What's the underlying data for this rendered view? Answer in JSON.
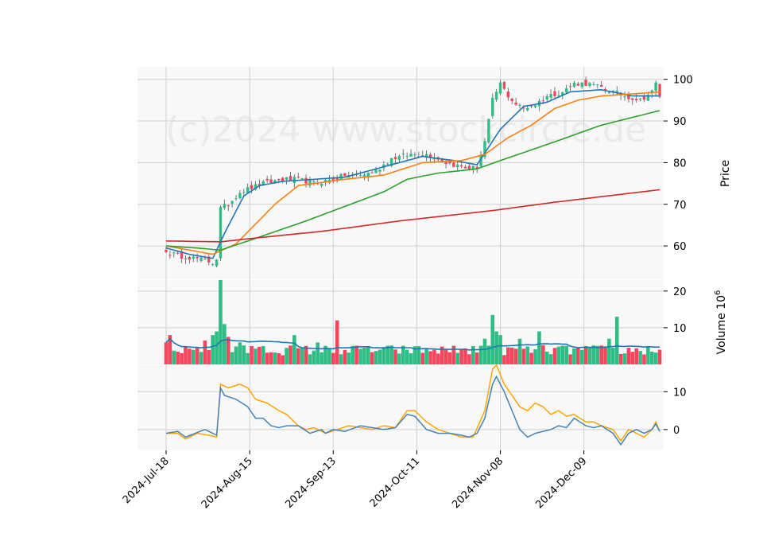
{
  "watermark": "(c)2024 www.stockcircle.de",
  "colors": {
    "up": "#2ebd85",
    "down": "#f6465d",
    "ma_blue": "#1f77b4",
    "ma_orange": "#ff7f0e",
    "ma_green": "#2ca02c",
    "ma_red": "#d62728",
    "vol_ma": "#1f77b4",
    "osc_blue": "#4682b4",
    "osc_orange": "#ffa500",
    "panel_bg": "#f8f8f8",
    "grid": "#d0d0d0"
  },
  "chart_data": {
    "type": "candlestick",
    "x_ticks": [
      "2024-Jul-18",
      "2024-Aug-15",
      "2024-Sep-13",
      "2024-Oct-11",
      "2024-Nov-08",
      "2024-Dec-09"
    ],
    "panels": {
      "price": {
        "ylabel": "Price",
        "yticks": [
          60,
          70,
          80,
          90,
          100
        ],
        "ylim": [
          52,
          103
        ],
        "close_anchors": [
          [
            0,
            58.5
          ],
          [
            4,
            57.5
          ],
          [
            8,
            57
          ],
          [
            12,
            56
          ],
          [
            13,
            57
          ],
          [
            14,
            69
          ],
          [
            16,
            70
          ],
          [
            19,
            73
          ],
          [
            25,
            75
          ],
          [
            30,
            76
          ],
          [
            34,
            76
          ],
          [
            38,
            75
          ],
          [
            43,
            76
          ],
          [
            46,
            77
          ],
          [
            50,
            77
          ],
          [
            54,
            78
          ],
          [
            58,
            81
          ],
          [
            63,
            82
          ],
          [
            67,
            82
          ],
          [
            72,
            80
          ],
          [
            76,
            79
          ],
          [
            78,
            78.5
          ],
          [
            80,
            79
          ],
          [
            82,
            85
          ],
          [
            84,
            95
          ],
          [
            86,
            99
          ],
          [
            88,
            96
          ],
          [
            90,
            94
          ],
          [
            92,
            93
          ],
          [
            95,
            94
          ],
          [
            98,
            96
          ],
          [
            102,
            97
          ],
          [
            105,
            99
          ],
          [
            108,
            99
          ],
          [
            112,
            98
          ],
          [
            115,
            97
          ],
          [
            118,
            96
          ],
          [
            122,
            95
          ],
          [
            125,
            97
          ],
          [
            126,
            99
          ],
          [
            127,
            96
          ]
        ],
        "moving_averages": [
          {
            "color_key": "ma_blue",
            "anchors": [
              [
                0,
                59.5
              ],
              [
                6,
                58
              ],
              [
                12,
                57
              ],
              [
                15,
                63
              ],
              [
                20,
                72
              ],
              [
                24,
                74.5
              ],
              [
                30,
                75.5
              ],
              [
                38,
                76
              ],
              [
                46,
                76.5
              ],
              [
                56,
                79
              ],
              [
                66,
                81.5
              ],
              [
                74,
                80.5
              ],
              [
                80,
                79.5
              ],
              [
                86,
                88
              ],
              [
                92,
                93.5
              ],
              [
                98,
                94.5
              ],
              [
                104,
                97
              ],
              [
                112,
                97.5
              ],
              [
                120,
                96
              ],
              [
                127,
                96
              ]
            ]
          },
          {
            "color_key": "ma_orange",
            "anchors": [
              [
                0,
                60
              ],
              [
                6,
                59
              ],
              [
                12,
                58
              ],
              [
                18,
                60.5
              ],
              [
                28,
                70
              ],
              [
                34,
                74.5
              ],
              [
                46,
                76
              ],
              [
                56,
                77
              ],
              [
                66,
                80
              ],
              [
                76,
                80.5
              ],
              [
                82,
                82
              ],
              [
                88,
                86
              ],
              [
                94,
                89
              ],
              [
                100,
                93
              ],
              [
                106,
                95
              ],
              [
                112,
                96
              ],
              [
                120,
                96.5
              ],
              [
                127,
                97
              ]
            ]
          },
          {
            "color_key": "ma_green",
            "anchors": [
              [
                0,
                60
              ],
              [
                8,
                59.5
              ],
              [
                14,
                59
              ],
              [
                22,
                61.5
              ],
              [
                36,
                66
              ],
              [
                46,
                69.5
              ],
              [
                56,
                73
              ],
              [
                62,
                76
              ],
              [
                70,
                77.5
              ],
              [
                80,
                78.5
              ],
              [
                86,
                80.5
              ],
              [
                100,
                85
              ],
              [
                112,
                89
              ],
              [
                127,
                92.5
              ]
            ]
          },
          {
            "color_key": "ma_red",
            "anchors": [
              [
                0,
                61.2
              ],
              [
                14,
                61
              ],
              [
                24,
                62
              ],
              [
                40,
                63.5
              ],
              [
                60,
                66
              ],
              [
                84,
                68.5
              ],
              [
                100,
                70.5
              ],
              [
                127,
                73.5
              ]
            ]
          }
        ]
      },
      "volume": {
        "ylabel": "Volume  10^6",
        "yticks": [
          10,
          20
        ],
        "ylim": [
          0,
          23
        ],
        "spikes": {
          "0": 6,
          "1": 8,
          "8": 4.5,
          "10": 6.5,
          "12": 8,
          "13": 9,
          "14": 23,
          "15": 11,
          "16": 7.5,
          "19": 6,
          "22": 5,
          "25": 5,
          "33": 8,
          "39": 6,
          "44": 12,
          "52": 5,
          "62": 4,
          "72": 4,
          "79": 5,
          "82": 7,
          "84": 13.5,
          "85": 9,
          "86": 8,
          "91": 7,
          "96": 9,
          "108": 5,
          "114": 7,
          "116": 13,
          "118": 3,
          "127": 4
        }
      },
      "oscillator": {
        "yticks": [
          0,
          10
        ],
        "ylim": [
          -5.5,
          17
        ],
        "blue_anchors": [
          [
            0,
            -1
          ],
          [
            3,
            -0.5
          ],
          [
            5,
            -2
          ],
          [
            10,
            0
          ],
          [
            13,
            -1.5
          ],
          [
            14,
            11
          ],
          [
            15,
            9
          ],
          [
            18,
            8
          ],
          [
            21,
            6
          ],
          [
            23,
            3
          ],
          [
            25,
            3
          ],
          [
            27,
            1
          ],
          [
            29,
            0.5
          ],
          [
            31,
            1
          ],
          [
            34,
            1
          ],
          [
            37,
            -1
          ],
          [
            40,
            0
          ],
          [
            41,
            -1
          ],
          [
            43,
            0
          ],
          [
            46,
            -0.5
          ],
          [
            50,
            1
          ],
          [
            53,
            0.5
          ],
          [
            56,
            0
          ],
          [
            59,
            0.5
          ],
          [
            62,
            4
          ],
          [
            64,
            3.5
          ],
          [
            67,
            0
          ],
          [
            70,
            -1
          ],
          [
            73,
            -1
          ],
          [
            76,
            -1.5
          ],
          [
            78,
            -2
          ],
          [
            80,
            -1
          ],
          [
            82,
            3
          ],
          [
            84,
            12
          ],
          [
            85,
            14
          ],
          [
            87,
            10
          ],
          [
            89,
            5
          ],
          [
            91,
            0
          ],
          [
            93,
            -2
          ],
          [
            95,
            -1
          ],
          [
            97,
            -0.5
          ],
          [
            99,
            0
          ],
          [
            101,
            1
          ],
          [
            103,
            0.5
          ],
          [
            105,
            3
          ],
          [
            108,
            1
          ],
          [
            110,
            0.5
          ],
          [
            112,
            1
          ],
          [
            115,
            -1
          ],
          [
            117,
            -4
          ],
          [
            119,
            -1
          ],
          [
            121,
            0
          ],
          [
            123,
            -1
          ],
          [
            125,
            0
          ],
          [
            126,
            1.5
          ],
          [
            127,
            -0.5
          ]
        ],
        "orange_anchors": [
          [
            0,
            -1
          ],
          [
            3,
            -1
          ],
          [
            5,
            -2.5
          ],
          [
            8,
            -1
          ],
          [
            11,
            -1.5
          ],
          [
            13,
            -2
          ],
          [
            14,
            12
          ],
          [
            16,
            11
          ],
          [
            19,
            12
          ],
          [
            21,
            11
          ],
          [
            23,
            8
          ],
          [
            26,
            7
          ],
          [
            29,
            5
          ],
          [
            31,
            4
          ],
          [
            34,
            1
          ],
          [
            36,
            0
          ],
          [
            38,
            0.5
          ],
          [
            41,
            -1
          ],
          [
            44,
            0
          ],
          [
            47,
            1
          ],
          [
            50,
            0.5
          ],
          [
            53,
            0
          ],
          [
            56,
            1
          ],
          [
            59,
            0.5
          ],
          [
            62,
            5
          ],
          [
            64,
            5
          ],
          [
            67,
            2
          ],
          [
            70,
            0
          ],
          [
            73,
            -1
          ],
          [
            76,
            -2
          ],
          [
            79,
            -2
          ],
          [
            82,
            5
          ],
          [
            84,
            16
          ],
          [
            85,
            17
          ],
          [
            87,
            12
          ],
          [
            89,
            9
          ],
          [
            91,
            6
          ],
          [
            93,
            5
          ],
          [
            95,
            7
          ],
          [
            97,
            6
          ],
          [
            99,
            4
          ],
          [
            101,
            5
          ],
          [
            103,
            3.5
          ],
          [
            105,
            4
          ],
          [
            108,
            2
          ],
          [
            110,
            2
          ],
          [
            112,
            1
          ],
          [
            115,
            0
          ],
          [
            117,
            -3
          ],
          [
            119,
            0
          ],
          [
            121,
            -1
          ],
          [
            123,
            -2
          ],
          [
            125,
            0
          ],
          [
            126,
            2
          ],
          [
            127,
            -0.5
          ]
        ]
      }
    }
  }
}
